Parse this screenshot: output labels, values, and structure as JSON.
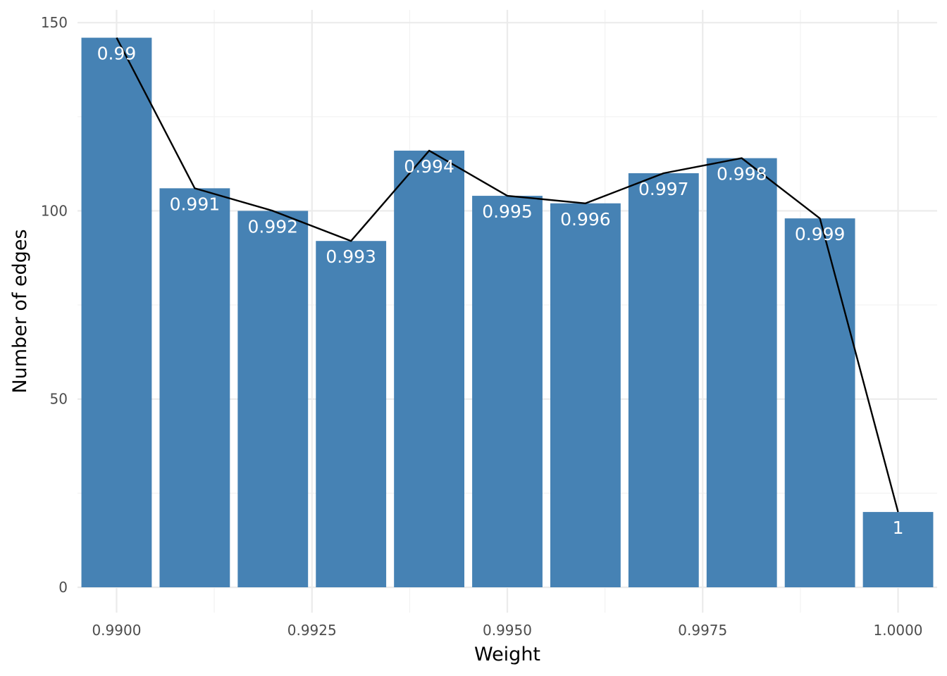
{
  "chart_data": {
    "type": "bar",
    "title": "",
    "xlabel": "Weight",
    "ylabel": "Number of edges",
    "x": [
      0.99,
      0.991,
      0.992,
      0.993,
      0.994,
      0.995,
      0.996,
      0.997,
      0.998,
      0.999,
      1.0
    ],
    "values": [
      146,
      106,
      100,
      92,
      116,
      104,
      102,
      110,
      114,
      98,
      20
    ],
    "bar_labels": [
      "0.99",
      "0.991",
      "0.992",
      "0.993",
      "0.994",
      "0.995",
      "0.996",
      "0.997",
      "0.998",
      "0.999",
      "1"
    ],
    "line": {
      "x": [
        0.99,
        0.991,
        0.992,
        0.993,
        0.994,
        0.995,
        0.996,
        0.997,
        0.998,
        0.999,
        1.0
      ],
      "y": [
        146,
        106,
        100,
        92,
        116,
        104,
        102,
        110,
        114,
        98,
        20
      ]
    },
    "xlim": [
      0.9895,
      1.0005
    ],
    "ylim": [
      0,
      150
    ],
    "x_ticks": [
      0.99,
      0.9925,
      0.995,
      0.9975,
      1.0
    ],
    "x_tick_labels": [
      "0.9900",
      "0.9925",
      "0.9950",
      "0.9975",
      "1.0000"
    ],
    "y_ticks": [
      0,
      50,
      100,
      150
    ],
    "y_tick_labels": [
      "0",
      "50",
      "100",
      "150"
    ],
    "grid": true,
    "legend": "none",
    "colors": {
      "bar": "#4682b4",
      "line": "#000000",
      "bar_label": "#ffffff"
    }
  }
}
